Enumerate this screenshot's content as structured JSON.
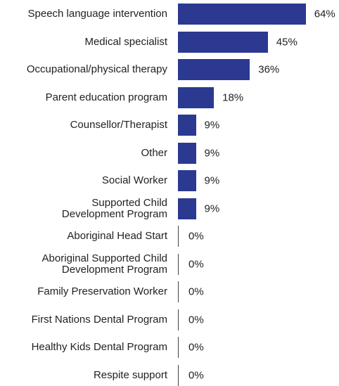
{
  "chart_data": {
    "type": "bar",
    "orientation": "horizontal",
    "color": "#2b3990",
    "categories": [
      "Speech language intervention",
      "Medical specialist",
      "Occupational/physical therapy",
      "Parent education program",
      "Counsellor/Therapist",
      "Other",
      "Social Worker",
      "Supported Child\nDevelopment Program",
      "Aboriginal Head Start",
      "Aboriginal Supported Child\nDevelopment Program",
      "Family Preservation Worker",
      "First Nations Dental Program",
      "Healthy Kids Dental Program",
      "Respite support"
    ],
    "values": [
      64,
      45,
      36,
      18,
      9,
      9,
      9,
      9,
      0,
      0,
      0,
      0,
      0,
      0
    ],
    "value_labels": [
      "64%",
      "45%",
      "36%",
      "18%",
      "9%",
      "9%",
      "9%",
      "9%",
      "0%",
      "0%",
      "0%",
      "0%",
      "0%",
      "0%"
    ]
  }
}
